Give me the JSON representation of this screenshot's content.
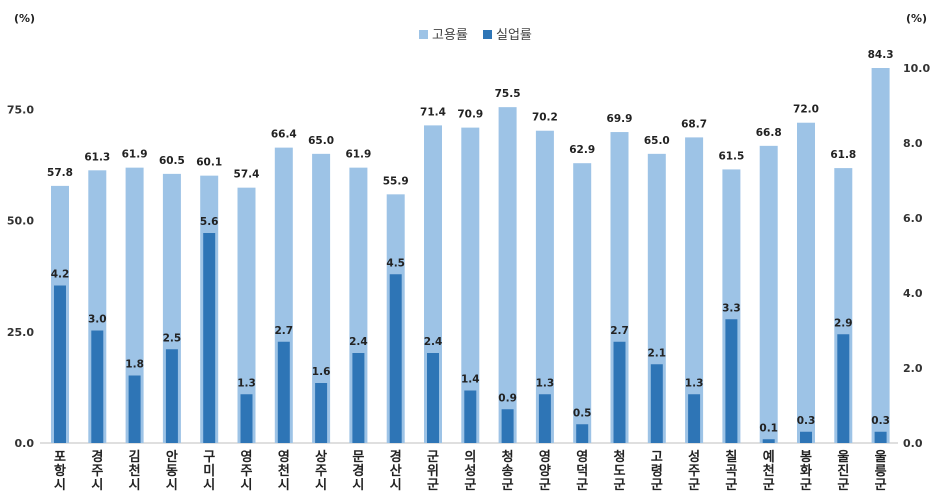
{
  "chart_data": {
    "type": "bar",
    "title": "",
    "left_axis_unit": "(%)",
    "right_axis_unit": "(%)",
    "left_ylim": [
      0,
      84.3
    ],
    "right_ylim": [
      0,
      10.0
    ],
    "left_ticks": [
      "0.0",
      "25.0",
      "50.0",
      "75.0"
    ],
    "right_ticks": [
      "0.0",
      "2.0",
      "4.0",
      "6.0",
      "8.0",
      "10.0"
    ],
    "grid": false,
    "legend_position": "top-center",
    "categories": [
      "포항시",
      "경주시",
      "김천시",
      "안동시",
      "구미시",
      "영주시",
      "영천시",
      "상주시",
      "문경시",
      "경산시",
      "군위군",
      "의성군",
      "청송군",
      "영양군",
      "영덕군",
      "청도군",
      "고령군",
      "성주군",
      "칠곡군",
      "예천군",
      "봉화군",
      "울진군",
      "울릉군"
    ],
    "series": [
      {
        "name": "고용률",
        "axis": "left",
        "color": "#9dc3e6",
        "values": [
          57.8,
          61.3,
          61.9,
          60.5,
          60.1,
          57.4,
          66.4,
          65.0,
          61.9,
          55.9,
          71.4,
          70.9,
          75.5,
          70.2,
          62.9,
          69.9,
          65.0,
          68.7,
          61.5,
          66.8,
          72.0,
          61.8,
          84.3
        ],
        "labels": [
          "57.8",
          "61.3",
          "61.9",
          "60.5",
          "60.1",
          "57.4",
          "66.4",
          "65.0",
          "61.9",
          "55.9",
          "71.4",
          "70.9",
          "75.5",
          "70.2",
          "62.9",
          "69.9",
          "65.0",
          "68.7",
          "61.5",
          "66.8",
          "72.0",
          "61.8",
          "84.3"
        ]
      },
      {
        "name": "실업률",
        "axis": "right",
        "color": "#2e75b6",
        "values": [
          4.2,
          3.0,
          1.8,
          2.5,
          5.6,
          1.3,
          2.7,
          1.6,
          2.4,
          4.5,
          2.4,
          1.4,
          0.9,
          1.3,
          0.5,
          2.7,
          2.1,
          1.3,
          3.3,
          0.1,
          0.3,
          2.9,
          0.3
        ],
        "labels": [
          "4.2",
          "3.0",
          "1.8",
          "2.5",
          "5.6",
          "1.3",
          "2.7",
          "1.6",
          "2.4",
          "4.5",
          "2.4",
          "1.4",
          "0.9",
          "1.3",
          "0.5",
          "2.7",
          "2.1",
          "1.3",
          "3.3",
          "0.1",
          "0.3",
          "2.9",
          "0.3"
        ]
      }
    ]
  }
}
